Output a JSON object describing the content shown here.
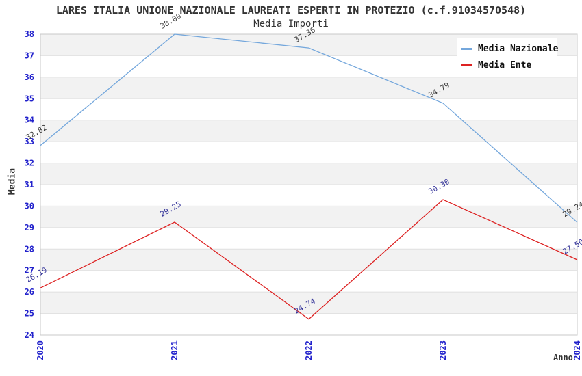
{
  "chart_data": {
    "type": "line",
    "title": "LARES ITALIA UNIONE NAZIONALE LAUREATI ESPERTI IN PROTEZIO (c.f.91034570548)",
    "subtitle": "Media Importi",
    "xlabel": "Anno",
    "ylabel": "Media",
    "categories": [
      "2020",
      "2021",
      "2022",
      "2023",
      "2024"
    ],
    "series": [
      {
        "name": "Media Nazionale",
        "color": "#74A7DC",
        "label_color": "#3A3A3A",
        "values": [
          32.82,
          38.0,
          37.36,
          34.79,
          29.24
        ]
      },
      {
        "name": "Media Ente",
        "color": "#DD2222",
        "label_color": "#333399",
        "values": [
          26.19,
          29.25,
          24.74,
          30.3,
          27.5
        ]
      }
    ],
    "ylim": [
      24,
      38
    ],
    "ytick_step": 1,
    "grid": true,
    "legend_position": "top-right",
    "tick_label_color": "#2222CC",
    "band_color": "#F2F2F2",
    "grid_color": "#E0E0E0",
    "frame_color": "#C8C8C8"
  }
}
